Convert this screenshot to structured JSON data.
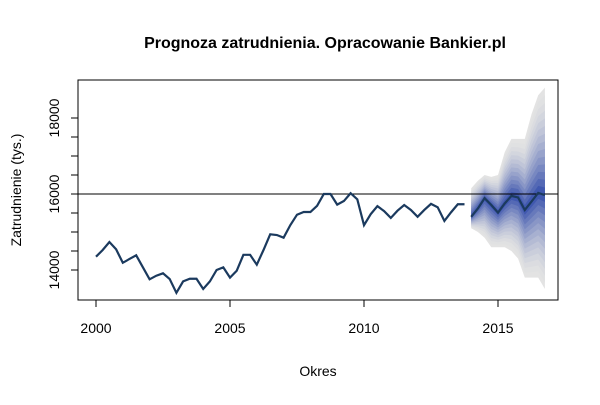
{
  "chart_data": {
    "type": "line",
    "title": "Prognoza zatrudnienia. Opracowanie Bankier.pl",
    "xlabel": "Okres",
    "ylabel": "Zatrudnienie (tys.)",
    "xlim": [
      1999.3,
      2017.2
    ],
    "ylim": [
      13200,
      19000
    ],
    "xticks": [
      2000,
      2005,
      2010,
      2015
    ],
    "yticks": [
      14000,
      16000,
      18000
    ],
    "hline": 16000,
    "grid": false,
    "history": {
      "name": "Zatrudnienie",
      "start": 2000.0,
      "step": 0.25,
      "values": [
        14350,
        14526,
        14737,
        14545,
        14190,
        14290,
        14387,
        14070,
        13755,
        13850,
        13913,
        13763,
        13400,
        13700,
        13770,
        13770,
        13500,
        13700,
        14000,
        14070,
        13800,
        13980,
        14400,
        14400,
        14140,
        14526,
        14940,
        14920,
        14850,
        15180,
        15455,
        15526,
        15526,
        15690,
        16000,
        16000,
        15720,
        15815,
        16020,
        15860,
        15180,
        15470,
        15680,
        15550,
        15370,
        15560,
        15710,
        15580,
        15400,
        15580,
        15740,
        15650,
        15290,
        15520,
        15730,
        15730
      ]
    },
    "forecast": {
      "name": "Prognoza",
      "start": 2014.0,
      "step": 0.25,
      "mean": [
        15400,
        15620,
        15890,
        15710,
        15510,
        15750,
        15950,
        15910,
        15580,
        15800,
        16030,
        15970
      ],
      "upper": [
        16150,
        16350,
        16500,
        16450,
        16500,
        17100,
        17450,
        17450,
        17450,
        18100,
        18600,
        18800
      ],
      "lower": [
        15100,
        15000,
        14850,
        14600,
        14600,
        14600,
        14500,
        14300,
        13800,
        13800,
        13800,
        13500
      ]
    },
    "colors": {
      "line": "#1b3a5e",
      "fan_inner": "#2c47a8",
      "fan_outer": "#e3e3e3",
      "hline": "#000000"
    }
  }
}
